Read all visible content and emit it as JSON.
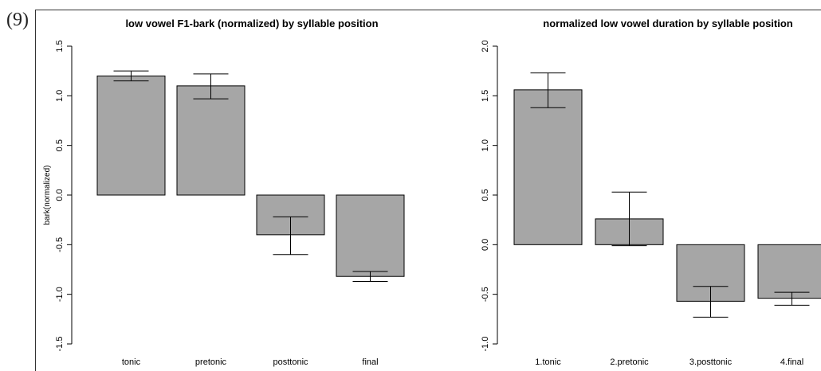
{
  "example_number": "(9)",
  "chart_data": [
    {
      "type": "bar",
      "title": "low vowel F1-bark (normalized) by syllable position",
      "xlabel": "",
      "ylabel": "bark(normalized)",
      "categories": [
        "tonic",
        "pretonic",
        "posttonic",
        "final"
      ],
      "values": [
        1.2,
        1.1,
        -0.4,
        -0.82
      ],
      "error_bars": [
        [
          1.15,
          1.25
        ],
        [
          0.97,
          1.22
        ],
        [
          -0.6,
          -0.22
        ],
        [
          -0.87,
          -0.77
        ]
      ],
      "ylim": [
        -1.5,
        1.5
      ],
      "yticks": [
        "-1.5",
        "-1.0",
        "-0.5",
        "0.0",
        "0.5",
        "1.0",
        "1.5"
      ],
      "bar_color": "#a6a6a6",
      "grid": false
    },
    {
      "type": "bar",
      "title": "normalized low vowel duration by syllable position",
      "xlabel": "",
      "ylabel": "",
      "categories": [
        "1.tonic",
        "2.pretonic",
        "3.posttonic",
        "4.final"
      ],
      "values": [
        1.56,
        0.26,
        -0.57,
        -0.54
      ],
      "error_bars": [
        [
          1.38,
          1.73
        ],
        [
          -0.01,
          0.53
        ],
        [
          -0.73,
          -0.42
        ],
        [
          -0.61,
          -0.48
        ]
      ],
      "ylim": [
        -1.0,
        2.0
      ],
      "yticks": [
        "-1.0",
        "-0.5",
        "0.0",
        "0.5",
        "1.0",
        "1.5",
        "2.0"
      ],
      "bar_color": "#a6a6a6",
      "grid": false
    }
  ]
}
